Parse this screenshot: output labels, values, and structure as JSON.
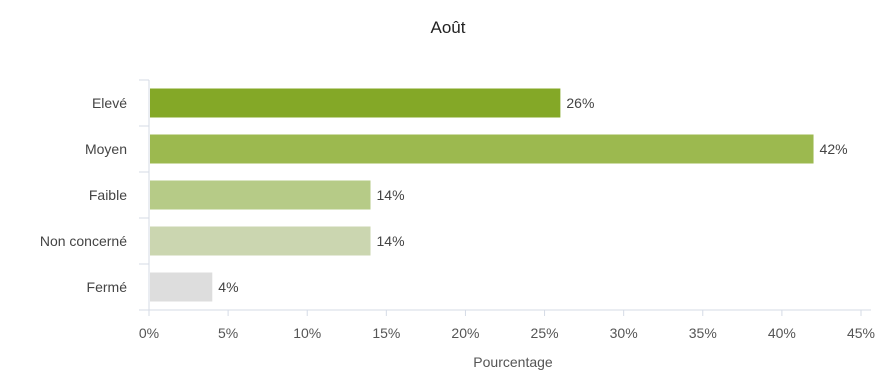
{
  "chart_data": {
    "type": "bar",
    "orientation": "horizontal",
    "title": "Août",
    "xlabel": "Pourcentage",
    "ylabel": "",
    "categories": [
      "Elevé",
      "Moyen",
      "Faible",
      "Non concerné",
      "Fermé"
    ],
    "values": [
      26,
      42,
      14,
      14,
      4
    ],
    "data_labels": [
      "26%",
      "42%",
      "14%",
      "14%",
      "4%"
    ],
    "bar_colors": [
      "#84a827",
      "#9cb94f",
      "#b6cb87",
      "#cbd6b0",
      "#dddddd"
    ],
    "xlim": [
      0,
      45
    ],
    "xticks": [
      0,
      5,
      10,
      15,
      20,
      25,
      30,
      35,
      40,
      45
    ],
    "xtick_labels": [
      "0%",
      "5%",
      "10%",
      "15%",
      "20%",
      "25%",
      "30%",
      "35%",
      "40%",
      "45%"
    ],
    "grid": false,
    "legend": "none"
  }
}
